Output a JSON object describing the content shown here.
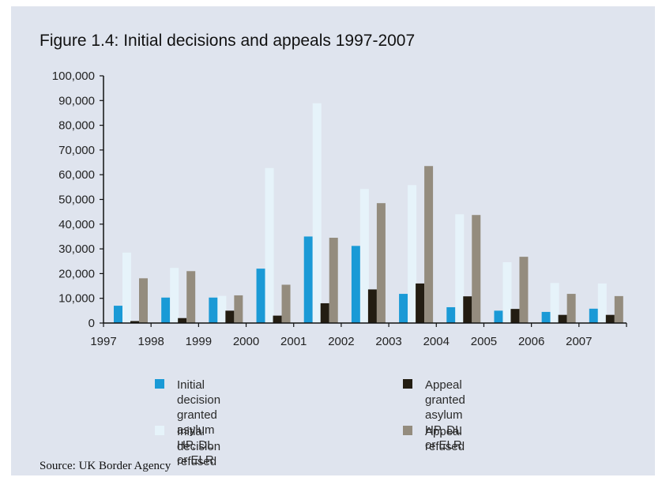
{
  "title": "Figure 1.4: Initial decisions and appeals 1997-2007",
  "source": "Source: UK Border Agency",
  "chart_data": {
    "type": "bar",
    "title": "Figure 1.4: Initial decisions and appeals 1997-2007",
    "xlabel": "",
    "ylabel": "",
    "ylim": [
      0,
      100000
    ],
    "yticks": [
      "0",
      "10,000",
      "20,000",
      "30,000",
      "40,000",
      "50,000",
      "60,000",
      "70,000",
      "80,000",
      "90,000",
      "100,000"
    ],
    "categories": [
      "1997",
      "1998",
      "1999",
      "2000",
      "2001",
      "2002",
      "2003",
      "2004",
      "2005",
      "2006",
      "2007"
    ],
    "grid": false,
    "legend_position": "bottom",
    "series": [
      {
        "name": "Initial decision granted asylum HP, DL or ELR",
        "color": "#1a9ad6",
        "values": [
          7000,
          10300,
          10300,
          22000,
          35000,
          31200,
          11800,
          6400,
          5000,
          4500,
          5800
        ]
      },
      {
        "name": "Initial decision refused",
        "color": "#e6f3fa",
        "values": [
          28500,
          22300,
          11000,
          62700,
          88900,
          54200,
          55800,
          44000,
          24600,
          16200,
          16000
        ]
      },
      {
        "name": "Appeal granted asylum HP, DL or ELR",
        "color": "#231d12",
        "values": [
          800,
          2000,
          5000,
          3000,
          8000,
          13600,
          16000,
          10800,
          5700,
          3300,
          3300
        ]
      },
      {
        "name": "Appeal refused",
        "color": "#948c7e",
        "values": [
          18100,
          21000,
          11200,
          15500,
          34500,
          48500,
          63500,
          43700,
          26800,
          11800,
          10900
        ]
      }
    ]
  },
  "legend": [
    {
      "label": "Initial decision granted asylum\nHP, DL or ELR",
      "color": "#1a9ad6"
    },
    {
      "label": "Appeal granted asylum\nHP, DL or ELR",
      "color": "#231d12"
    },
    {
      "label": "Initial decision refused",
      "color": "#e6f3fa"
    },
    {
      "label": "Appeal refused",
      "color": "#948c7e"
    }
  ]
}
